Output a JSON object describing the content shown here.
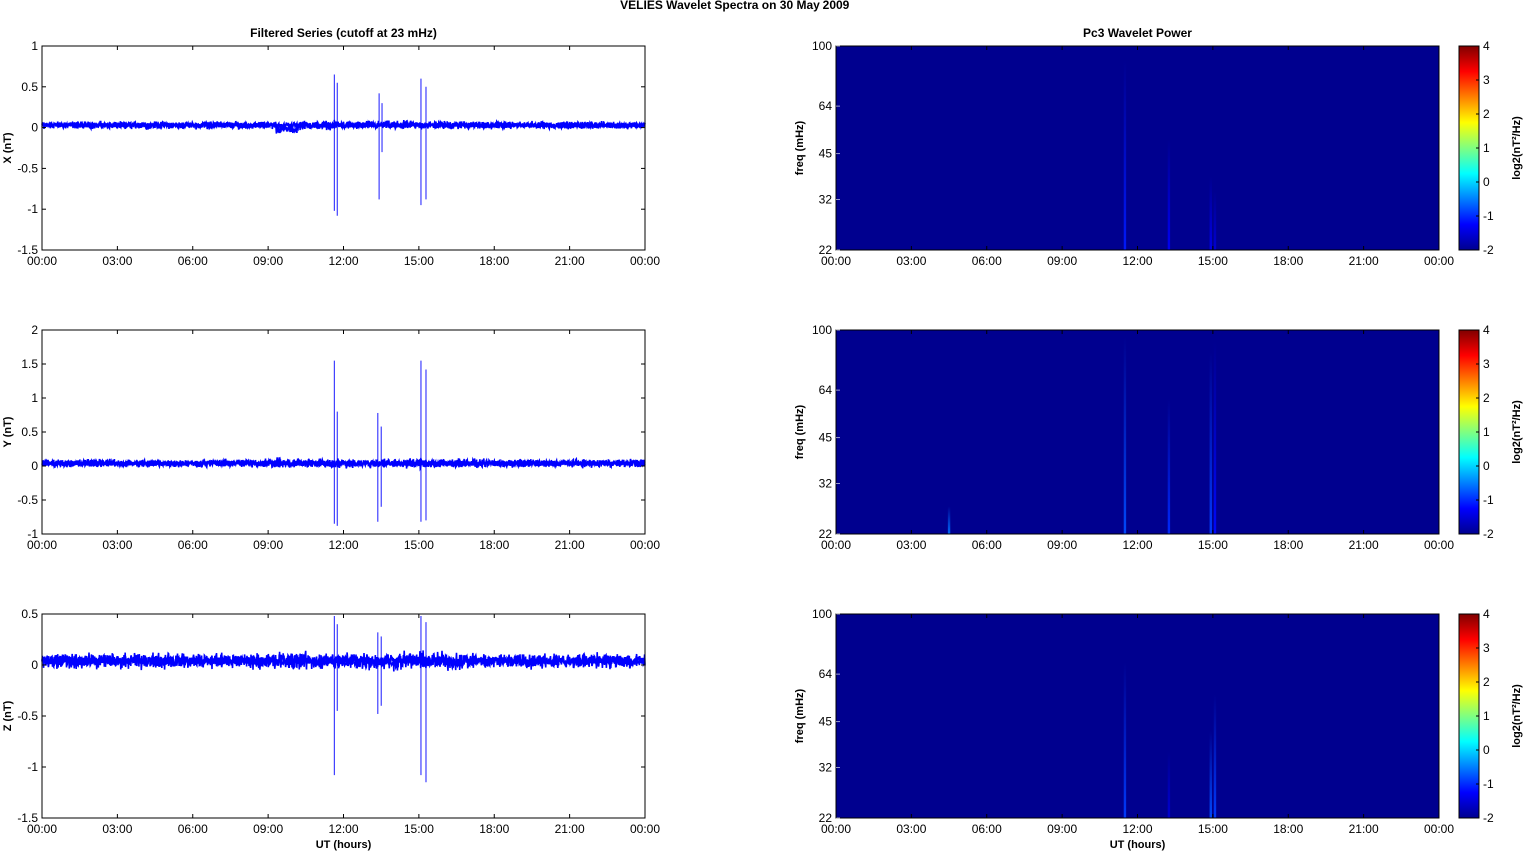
{
  "figure": {
    "title_main": "VELIES Wavelet Spectra on 30 May",
    "title_year": "2009"
  },
  "colors": {
    "trace": "#0000ff",
    "spectrum_background": "#00008f",
    "axis": "#000000"
  },
  "chart_data": [
    {
      "id": "x-series",
      "type": "line",
      "title": "Filtered Series (cutoff at 23 mHz)",
      "xlabel": "",
      "ylabel": "X (nT)",
      "xlim": [
        "00:00",
        "24:00"
      ],
      "ylim": [
        -1.5,
        1
      ],
      "xticks": [
        "00:00",
        "03:00",
        "06:00",
        "09:00",
        "12:00",
        "15:00",
        "18:00",
        "21:00",
        "00:00"
      ],
      "yticks": [
        "1",
        "0.5",
        "0",
        "-0.5",
        "-1",
        "-1.5"
      ],
      "baseline": 0.03,
      "noise_amplitude": 0.06,
      "spikes": [
        {
          "t": "11:38",
          "min": -1.02,
          "max": 0.65
        },
        {
          "t": "11:45",
          "min": -1.08,
          "max": 0.55
        },
        {
          "t": "13:25",
          "min": -0.88,
          "max": 0.42
        },
        {
          "t": "13:32",
          "min": -0.3,
          "max": 0.3
        },
        {
          "t": "15:05",
          "min": -0.95,
          "max": 0.6
        },
        {
          "t": "15:17",
          "min": -0.88,
          "max": 0.5
        }
      ]
    },
    {
      "id": "y-series",
      "type": "line",
      "title": "",
      "xlabel": "",
      "ylabel": "Y (nT)",
      "xlim": [
        "00:00",
        "24:00"
      ],
      "ylim": [
        -1,
        2
      ],
      "xticks": [
        "00:00",
        "03:00",
        "06:00",
        "09:00",
        "12:00",
        "15:00",
        "18:00",
        "21:00",
        "00:00"
      ],
      "yticks": [
        "2",
        "1.5",
        "1",
        "0.5",
        "0",
        "-0.5",
        "-1"
      ],
      "baseline": 0.04,
      "noise_amplitude": 0.08,
      "spikes": [
        {
          "t": "11:38",
          "min": -0.85,
          "max": 1.55
        },
        {
          "t": "11:45",
          "min": -0.88,
          "max": 0.8
        },
        {
          "t": "13:22",
          "min": -0.82,
          "max": 0.78
        },
        {
          "t": "13:30",
          "min": -0.6,
          "max": 0.58
        },
        {
          "t": "15:05",
          "min": -0.82,
          "max": 1.55
        },
        {
          "t": "15:17",
          "min": -0.8,
          "max": 1.42
        }
      ]
    },
    {
      "id": "z-series",
      "type": "line",
      "title": "",
      "xlabel": "UT (hours)",
      "ylabel": "Z (nT)",
      "xlim": [
        "00:00",
        "24:00"
      ],
      "ylim": [
        -1.5,
        0.5
      ],
      "xticks": [
        "00:00",
        "03:00",
        "06:00",
        "09:00",
        "12:00",
        "15:00",
        "18:00",
        "21:00",
        "00:00"
      ],
      "yticks": [
        "0.5",
        "0",
        "-0.5",
        "-1",
        "-1.5"
      ],
      "baseline": 0.04,
      "noise_amplitude": 0.1,
      "spikes": [
        {
          "t": "11:38",
          "min": -1.08,
          "max": 0.48
        },
        {
          "t": "11:45",
          "min": -0.45,
          "max": 0.4
        },
        {
          "t": "13:22",
          "min": -0.48,
          "max": 0.32
        },
        {
          "t": "13:30",
          "min": -0.4,
          "max": 0.28
        },
        {
          "t": "15:05",
          "min": -1.08,
          "max": 0.48
        },
        {
          "t": "15:17",
          "min": -1.15,
          "max": 0.42
        }
      ]
    },
    {
      "id": "x-spectrum",
      "type": "heatmap",
      "title": "Pc3 Wavelet Power",
      "xlabel": "",
      "ylabel": "freq (mHz)",
      "xlim": [
        "00:00",
        "24:00"
      ],
      "ylim": [
        22,
        100
      ],
      "yscale": "log",
      "xticks": [
        "00:00",
        "03:00",
        "06:00",
        "09:00",
        "12:00",
        "15:00",
        "18:00",
        "21:00",
        "00:00"
      ],
      "yticks": [
        "100",
        "64",
        "45",
        "32",
        "22"
      ],
      "colorbar": {
        "label": "log2(nT²/Hz)",
        "ticks": [
          "4",
          "3",
          "2",
          "1",
          "0",
          "-1",
          "-2"
        ],
        "range": [
          -2,
          4
        ],
        "colormap": "jet"
      },
      "streaks": [
        {
          "t": "11:30",
          "f_max": 90,
          "peak": -1.1
        },
        {
          "t": "13:15",
          "f_max": 50,
          "peak": -1.3
        },
        {
          "t": "14:55",
          "f_max": 38,
          "peak": -1.4
        },
        {
          "t": "15:05",
          "f_max": 34,
          "peak": -1.5
        }
      ]
    },
    {
      "id": "y-spectrum",
      "type": "heatmap",
      "title": "",
      "xlabel": "",
      "ylabel": "freq (mHz)",
      "xlim": [
        "00:00",
        "24:00"
      ],
      "ylim": [
        22,
        100
      ],
      "yscale": "log",
      "xticks": [
        "00:00",
        "03:00",
        "06:00",
        "09:00",
        "12:00",
        "15:00",
        "18:00",
        "21:00",
        "00:00"
      ],
      "yticks": [
        "100",
        "64",
        "45",
        "32",
        "22"
      ],
      "colorbar": {
        "label": "log2(nT²/Hz)",
        "ticks": [
          "4",
          "3",
          "2",
          "1",
          "0",
          "-1",
          "-2"
        ],
        "range": [
          -2,
          4
        ],
        "colormap": "jet"
      },
      "streaks": [
        {
          "t": "04:30",
          "f_max": 27,
          "peak": -0.6
        },
        {
          "t": "11:30",
          "f_max": 95,
          "peak": -0.8
        },
        {
          "t": "13:15",
          "f_max": 60,
          "peak": -1.0
        },
        {
          "t": "14:55",
          "f_max": 85,
          "peak": -0.9
        },
        {
          "t": "15:05",
          "f_max": 92,
          "peak": -1.2
        }
      ]
    },
    {
      "id": "z-spectrum",
      "type": "heatmap",
      "title": "",
      "xlabel": "UT (hours)",
      "ylabel": "freq (mHz)",
      "xlim": [
        "00:00",
        "24:00"
      ],
      "ylim": [
        22,
        100
      ],
      "yscale": "log",
      "xticks": [
        "00:00",
        "03:00",
        "06:00",
        "09:00",
        "12:00",
        "15:00",
        "18:00",
        "21:00",
        "00:00"
      ],
      "yticks": [
        "100",
        "64",
        "45",
        "32",
        "22"
      ],
      "colorbar": {
        "label": "log2(nT²/Hz)",
        "ticks": [
          "4",
          "3",
          "2",
          "1",
          "0",
          "-1",
          "-2"
        ],
        "range": [
          -2,
          4
        ],
        "colormap": "jet"
      },
      "streaks": [
        {
          "t": "11:30",
          "f_max": 70,
          "peak": -0.9
        },
        {
          "t": "13:15",
          "f_max": 36,
          "peak": -1.5
        },
        {
          "t": "14:55",
          "f_max": 42,
          "peak": -0.8
        },
        {
          "t": "15:05",
          "f_max": 55,
          "peak": -0.9
        }
      ]
    }
  ]
}
